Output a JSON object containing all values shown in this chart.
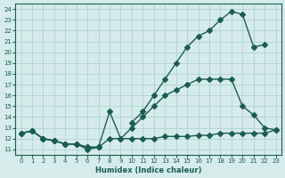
{
  "xlabel": "Humidex (Indice chaleur)",
  "background_color": "#d5ecea",
  "grid_color": "#a8cccb",
  "line_color": "#1a5c55",
  "xlim": [
    -0.5,
    23.5
  ],
  "ylim": [
    10.5,
    24.5
  ],
  "xticks": [
    0,
    1,
    2,
    3,
    4,
    5,
    6,
    7,
    8,
    9,
    10,
    11,
    12,
    13,
    14,
    15,
    16,
    17,
    18,
    19,
    20,
    21,
    22,
    23
  ],
  "yticks": [
    11,
    12,
    13,
    14,
    15,
    16,
    17,
    18,
    19,
    20,
    21,
    22,
    23,
    24
  ],
  "line1_x": [
    0,
    1,
    2,
    3,
    4,
    5,
    6,
    7,
    8,
    9,
    10,
    11,
    12,
    13,
    14,
    15,
    16,
    17,
    18,
    19,
    20,
    21,
    22,
    23
  ],
  "line1_y": [
    12.5,
    12.7,
    12.0,
    11.8,
    11.5,
    11.5,
    11.0,
    11.2,
    12.0,
    12.0,
    12.0,
    12.0,
    12.0,
    12.2,
    12.2,
    12.2,
    12.3,
    12.3,
    12.5,
    12.5,
    12.5,
    12.5,
    12.5,
    12.8
  ],
  "line2_x": [
    0,
    1,
    2,
    3,
    4,
    5,
    6,
    7,
    8,
    9,
    10,
    11,
    12,
    13,
    14,
    15,
    16,
    17,
    18,
    19,
    20,
    21,
    22,
    23
  ],
  "line2_y": [
    12.5,
    12.7,
    12.0,
    11.8,
    11.5,
    11.5,
    11.2,
    11.2,
    14.5,
    12.0,
    13.0,
    14.0,
    15.0,
    16.0,
    16.5,
    17.0,
    17.5,
    17.5,
    17.5,
    17.5,
    15.0,
    14.2,
    13.0,
    12.8
  ],
  "line3_x": [
    0,
    1,
    2,
    3,
    4,
    5,
    6,
    7,
    8,
    9,
    10,
    11,
    12,
    13,
    14,
    15,
    16,
    17,
    18,
    19,
    20,
    21,
    22,
    23
  ],
  "line3_y": [
    12.5,
    12.7,
    12.0,
    11.8,
    11.5,
    11.5,
    11.2,
    11.2,
    null,
    null,
    13.5,
    14.5,
    16.0,
    17.5,
    19.0,
    20.5,
    21.5,
    22.0,
    23.0,
    23.8,
    23.5,
    20.5,
    20.7,
    null
  ]
}
